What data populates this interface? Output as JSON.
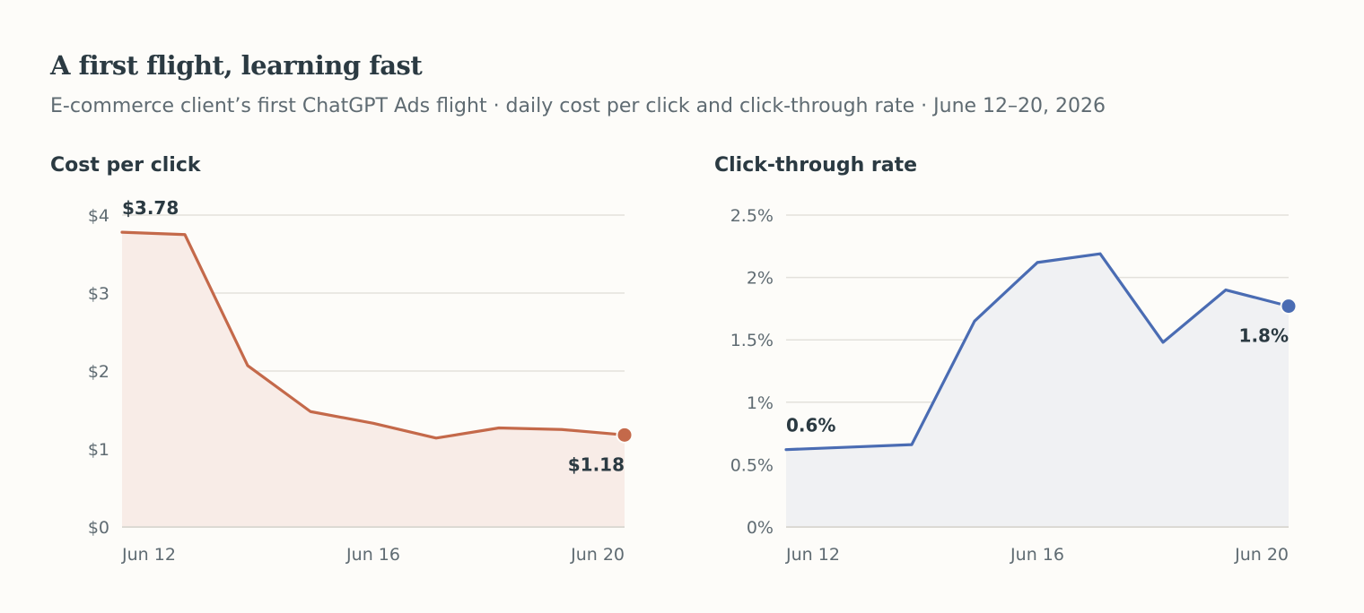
{
  "header": {
    "title": "A first flight, learning fast",
    "subtitle": "E-commerce client’s first ChatGPT Ads flight · daily cost per click and click-through rate · June 12–20, 2026"
  },
  "chart_data": [
    {
      "type": "area",
      "title": "Cost per click",
      "x": [
        "Jun 12",
        "Jun 13",
        "Jun 14",
        "Jun 15",
        "Jun 16",
        "Jun 17",
        "Jun 18",
        "Jun 19",
        "Jun 20"
      ],
      "values": [
        3.78,
        3.75,
        2.07,
        1.48,
        1.33,
        1.14,
        1.27,
        1.25,
        1.18
      ],
      "ylim": [
        0,
        4
      ],
      "yticks": [
        0,
        1,
        2,
        3,
        4
      ],
      "ytick_labels": [
        "$0",
        "$1",
        "$2",
        "$3",
        "$4"
      ],
      "xticks": [
        "Jun 12",
        "Jun 16",
        "Jun 20"
      ],
      "start_label": "$3.78",
      "end_label": "$1.18",
      "grid": true,
      "color": "#c4694a",
      "fill_color": "#f8ece7"
    },
    {
      "type": "area",
      "title": "Click-through rate",
      "x": [
        "Jun 12",
        "Jun 13",
        "Jun 14",
        "Jun 15",
        "Jun 16",
        "Jun 17",
        "Jun 18",
        "Jun 19",
        "Jun 20"
      ],
      "values": [
        0.62,
        0.64,
        0.66,
        1.65,
        2.12,
        2.19,
        1.48,
        1.9,
        1.77
      ],
      "ylim": [
        0,
        2.5
      ],
      "yticks": [
        0,
        0.5,
        1,
        1.5,
        2,
        2.5
      ],
      "ytick_labels": [
        "0%",
        "0.5%",
        "1%",
        "1.5%",
        "2%",
        "2.5%"
      ],
      "xticks": [
        "Jun 12",
        "Jun 16",
        "Jun 20"
      ],
      "start_label": "0.6%",
      "end_label": "1.8%",
      "grid": true,
      "color": "#4a6cb3",
      "fill_color": "#f0f1f3"
    }
  ]
}
